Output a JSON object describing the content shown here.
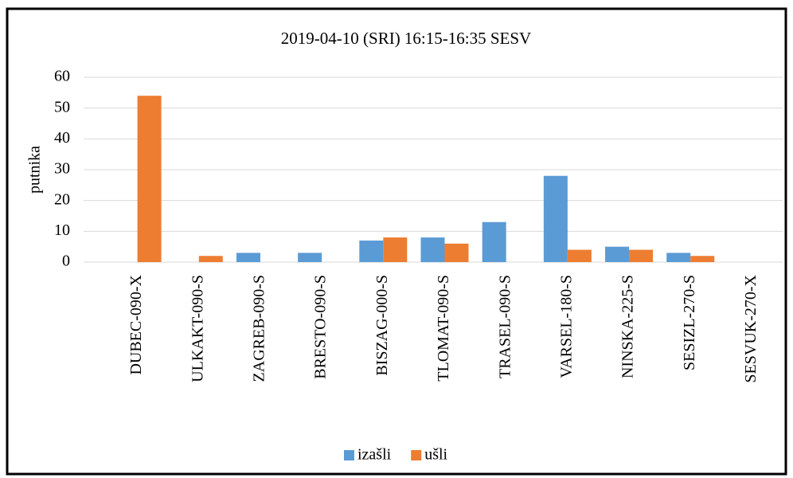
{
  "chart_data": {
    "type": "bar",
    "title": "2019-04-10 (SRI) 16:15-16:35 SESV",
    "y_label": "putnika",
    "categories": [
      "DUBEC-090-X",
      "ULKAKT-090-S",
      "ZAGREB-090-S",
      "BRESTO-090-S",
      "BISZAG-000-S",
      "TLOMAT-090-S",
      "TRASEL-090-S",
      "VARSEL-180-S",
      "NINSKA-225-S",
      "SESIZL-270-S",
      "SESVUK-270-X"
    ],
    "series": [
      {
        "name": "izašli",
        "color": "#5b9bd5",
        "values": [
          0,
          0,
          3,
          3,
          7,
          8,
          13,
          28,
          5,
          3,
          0
        ]
      },
      {
        "name": "ušli",
        "color": "#ed7d31",
        "values": [
          54,
          2,
          0,
          0,
          8,
          6,
          0,
          4,
          4,
          2,
          0
        ]
      }
    ],
    "ylim": [
      0,
      60
    ],
    "yticks": [
      0,
      10,
      20,
      30,
      40,
      50,
      60
    ],
    "grid": true,
    "legend": "bottom"
  }
}
